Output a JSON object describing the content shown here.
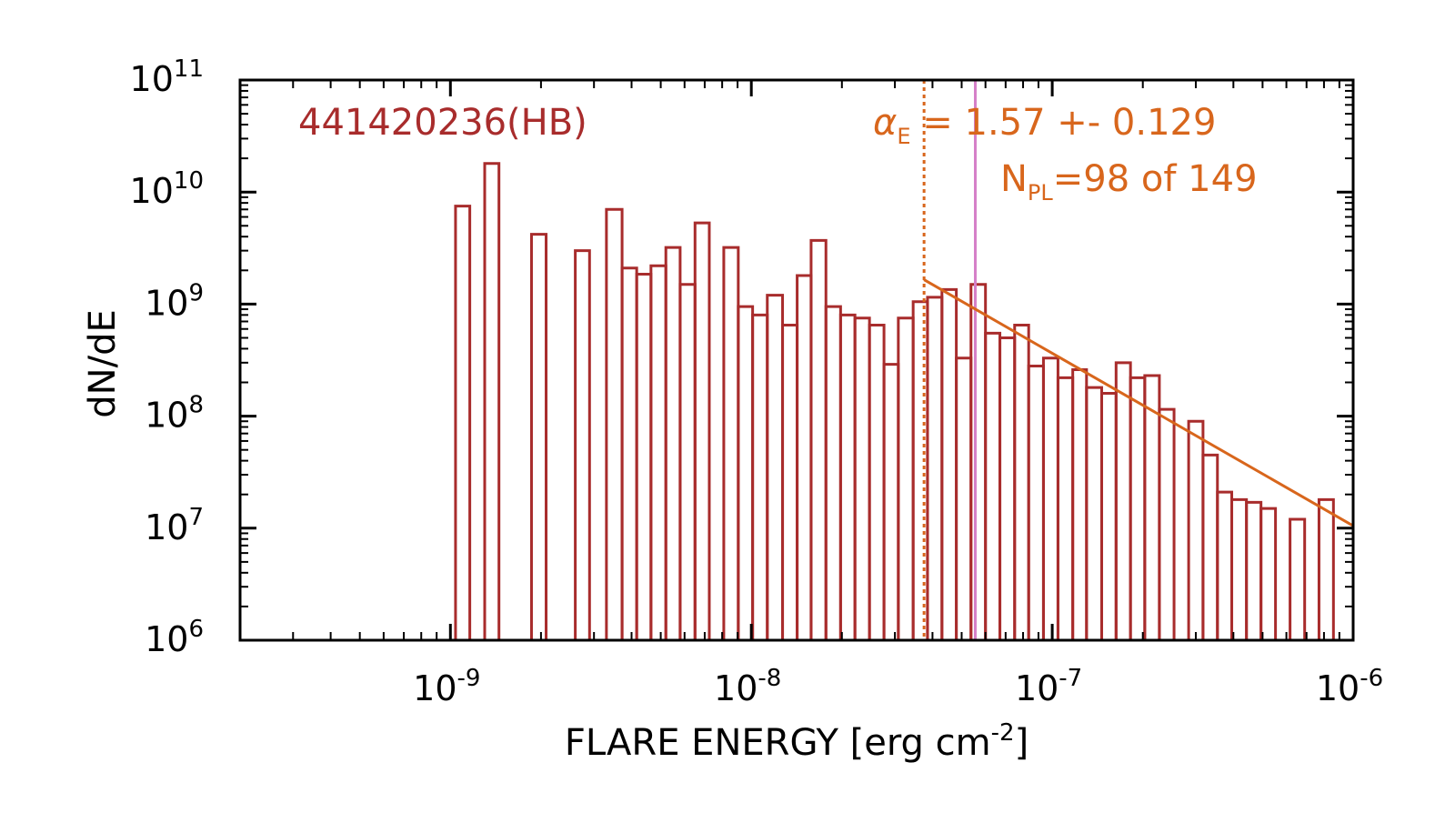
{
  "colors": {
    "histogram": "#a82c2c",
    "fit": "#d8661c",
    "threshold_line": "#d8661c",
    "reference_line": "#d580c8",
    "axes": "#000000",
    "title": "#a82c2c"
  },
  "chart_data": {
    "type": "histogram",
    "title": "441420236(HB)",
    "xlabel": "FLARE ENERGY [erg cm",
    "xlabel_exponent": "-2",
    "xlabel_suffix": "]",
    "ylabel": "dN/dE",
    "x_scale": "log",
    "y_scale": "log",
    "xlim": [
      2e-10,
      1e-06
    ],
    "ylim": [
      1000000.0,
      100000000000.0
    ],
    "x_ticks": [
      {
        "value": 1e-09,
        "base": "10",
        "exp": "-9"
      },
      {
        "value": 1e-08,
        "base": "10",
        "exp": "-8"
      },
      {
        "value": 1e-07,
        "base": "10",
        "exp": "-7"
      },
      {
        "value": 1e-06,
        "base": "10",
        "exp": "-6"
      }
    ],
    "y_ticks": [
      {
        "value": 1000000.0,
        "base": "10",
        "exp": "6"
      },
      {
        "value": 10000000.0,
        "base": "10",
        "exp": "7"
      },
      {
        "value": 100000000.0,
        "base": "10",
        "exp": "8"
      },
      {
        "value": 1000000000.0,
        "base": "10",
        "exp": "9"
      },
      {
        "value": 10000000000.0,
        "base": "10",
        "exp": "10"
      },
      {
        "value": 100000000000.0,
        "base": "10",
        "exp": "11"
      }
    ],
    "bins": [
      {
        "x0": 1.04e-09,
        "x1": 1.16e-09,
        "y": 7500000000.0
      },
      {
        "x0": 1.16e-09,
        "x1": 1.3e-09,
        "y": 0
      },
      {
        "x0": 1.3e-09,
        "x1": 1.45e-09,
        "y": 18000000000.0
      },
      {
        "x0": 1.45e-09,
        "x1": 1.86e-09,
        "y": 0
      },
      {
        "x0": 1.86e-09,
        "x1": 2.08e-09,
        "y": 4200000000.0
      },
      {
        "x0": 2.08e-09,
        "x1": 2.6e-09,
        "y": 0
      },
      {
        "x0": 2.6e-09,
        "x1": 2.9e-09,
        "y": 3000000000.0
      },
      {
        "x0": 2.9e-09,
        "x1": 3.3e-09,
        "y": 0
      },
      {
        "x0": 3.3e-09,
        "x1": 3.72e-09,
        "y": 7000000000.0
      },
      {
        "x0": 3.72e-09,
        "x1": 4.16e-09,
        "y": 2100000000.0
      },
      {
        "x0": 4.16e-09,
        "x1": 4.64e-09,
        "y": 1850000000.0
      },
      {
        "x0": 4.64e-09,
        "x1": 5.2e-09,
        "y": 2200000000.0
      },
      {
        "x0": 5.2e-09,
        "x1": 5.8e-09,
        "y": 3200000000.0
      },
      {
        "x0": 5.8e-09,
        "x1": 6.5e-09,
        "y": 1500000000.0
      },
      {
        "x0": 6.5e-09,
        "x1": 7.25e-09,
        "y": 5300000000.0
      },
      {
        "x0": 7.25e-09,
        "x1": 8.1e-09,
        "y": 0
      },
      {
        "x0": 8.1e-09,
        "x1": 9.05e-09,
        "y": 3200000000.0
      },
      {
        "x0": 9.05e-09,
        "x1": 1.01e-08,
        "y": 950000000.0
      },
      {
        "x0": 1.01e-08,
        "x1": 1.13e-08,
        "y": 800000000.0
      },
      {
        "x0": 1.13e-08,
        "x1": 1.27e-08,
        "y": 1200000000.0
      },
      {
        "x0": 1.27e-08,
        "x1": 1.42e-08,
        "y": 650000000.0
      },
      {
        "x0": 1.42e-08,
        "x1": 1.58e-08,
        "y": 1800000000.0
      },
      {
        "x0": 1.58e-08,
        "x1": 1.77e-08,
        "y": 3700000000.0
      },
      {
        "x0": 1.77e-08,
        "x1": 1.98e-08,
        "y": 950000000.0
      },
      {
        "x0": 1.98e-08,
        "x1": 2.21e-08,
        "y": 800000000.0
      },
      {
        "x0": 2.21e-08,
        "x1": 2.47e-08,
        "y": 750000000.0
      },
      {
        "x0": 2.47e-08,
        "x1": 2.76e-08,
        "y": 650000000.0
      },
      {
        "x0": 2.76e-08,
        "x1": 3.08e-08,
        "y": 290000000.0
      },
      {
        "x0": 3.08e-08,
        "x1": 3.45e-08,
        "y": 750000000.0
      },
      {
        "x0": 3.45e-08,
        "x1": 3.85e-08,
        "y": 1050000000.0
      },
      {
        "x0": 3.85e-08,
        "x1": 4.3e-08,
        "y": 1150000000.0
      },
      {
        "x0": 4.3e-08,
        "x1": 4.8e-08,
        "y": 1350000000.0
      },
      {
        "x0": 4.8e-08,
        "x1": 5.37e-08,
        "y": 330000000.0
      },
      {
        "x0": 5.37e-08,
        "x1": 6e-08,
        "y": 1500000000.0
      },
      {
        "x0": 6e-08,
        "x1": 6.7e-08,
        "y": 550000000.0
      },
      {
        "x0": 6.7e-08,
        "x1": 7.5e-08,
        "y": 500000000.0
      },
      {
        "x0": 7.5e-08,
        "x1": 8.35e-08,
        "y": 650000000.0
      },
      {
        "x0": 8.35e-08,
        "x1": 9.35e-08,
        "y": 280000000.0
      },
      {
        "x0": 9.35e-08,
        "x1": 1.045e-07,
        "y": 330000000.0
      },
      {
        "x0": 1.045e-07,
        "x1": 1.17e-07,
        "y": 220000000.0
      },
      {
        "x0": 1.17e-07,
        "x1": 1.3e-07,
        "y": 260000000.0
      },
      {
        "x0": 1.3e-07,
        "x1": 1.46e-07,
        "y": 180000000.0
      },
      {
        "x0": 1.46e-07,
        "x1": 1.63e-07,
        "y": 160000000.0
      },
      {
        "x0": 1.63e-07,
        "x1": 1.82e-07,
        "y": 300000000.0
      },
      {
        "x0": 1.82e-07,
        "x1": 2.03e-07,
        "y": 220000000.0
      },
      {
        "x0": 2.03e-07,
        "x1": 2.27e-07,
        "y": 230000000.0
      },
      {
        "x0": 2.27e-07,
        "x1": 2.54e-07,
        "y": 115000000.0
      },
      {
        "x0": 2.54e-07,
        "x1": 2.84e-07,
        "y": 0
      },
      {
        "x0": 2.84e-07,
        "x1": 3.17e-07,
        "y": 90000000.0
      },
      {
        "x0": 3.17e-07,
        "x1": 3.54e-07,
        "y": 45000000.0
      },
      {
        "x0": 3.54e-07,
        "x1": 3.95e-07,
        "y": 21000000.0
      },
      {
        "x0": 3.95e-07,
        "x1": 4.42e-07,
        "y": 18000000.0
      },
      {
        "x0": 4.42e-07,
        "x1": 4.94e-07,
        "y": 17000000.0
      },
      {
        "x0": 4.94e-07,
        "x1": 5.52e-07,
        "y": 15000000.0
      },
      {
        "x0": 5.52e-07,
        "x1": 6.17e-07,
        "y": 0
      },
      {
        "x0": 6.17e-07,
        "x1": 6.9e-07,
        "y": 12000000.0
      },
      {
        "x0": 6.9e-07,
        "x1": 7.7e-07,
        "y": 0
      },
      {
        "x0": 7.7e-07,
        "x1": 8.6e-07,
        "y": 18000000.0
      }
    ],
    "fit_line": {
      "x": [
        3.75e-08,
        1e-06
      ],
      "y": [
        1650000000.0,
        10500000.0
      ]
    },
    "threshold_x": 3.75e-08,
    "reference_x": 5.55e-08,
    "annotations": {
      "alpha_symbol": "α",
      "alpha_subscript": "E",
      "alpha_text": " =  1.57 +- 0.129",
      "npl_symbol": "N",
      "npl_subscript": "PL",
      "npl_text": "=98 of 149"
    }
  }
}
